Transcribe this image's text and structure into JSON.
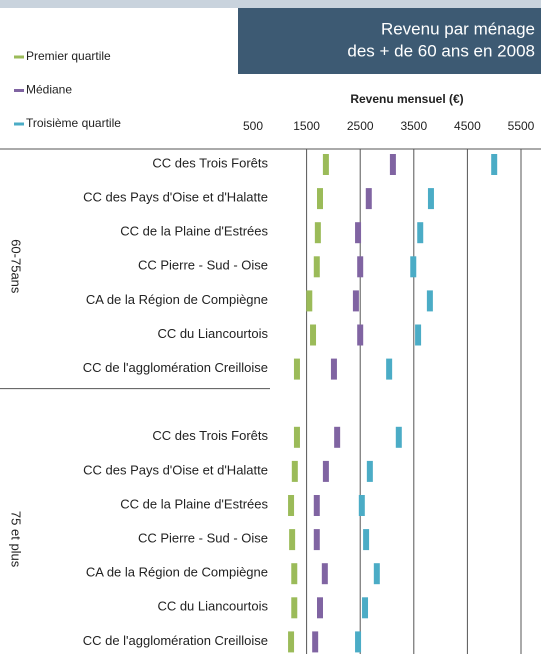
{
  "chart_data": {
    "type": "range-markers",
    "title_lines": [
      "Revenu par ménage",
      "des + de 60 ans en 2008"
    ],
    "x_label": "Revenu mensuel (€)",
    "groups": [
      "60-75ans",
      "75 et plus"
    ],
    "categories": [
      "CC des Trois Forêts",
      "CC des Pays d'Oise et d'Halatte",
      "CC de la Plaine d'Estrées",
      "CC Pierre - Sud - Oise",
      "CA de la Région de Compiègne",
      "CC du Liancourtois",
      "CC de l'agglomération Creilloise",
      null,
      "CC des Trois Forêts",
      "CC des Pays d'Oise et d'Halatte",
      "CC de la Plaine d'Estrées",
      "CC Pierre - Sud - Oise",
      "CA de la Région de Compiègne",
      "CC du Liancourtois",
      "CC de l'agglomération Creilloise"
    ],
    "series": [
      {
        "name": "Premier quartile",
        "color": "#9bbb59",
        "values": [
          1860,
          1750,
          1710,
          1690,
          1550,
          1620,
          1320,
          null,
          1320,
          1280,
          1210,
          1230,
          1270,
          1270,
          1210
        ]
      },
      {
        "name": "Médiane",
        "color": "#8064a2",
        "values": [
          3110,
          2660,
          2460,
          2500,
          2420,
          2500,
          2010,
          null,
          2070,
          1860,
          1690,
          1690,
          1840,
          1750,
          1660
        ]
      },
      {
        "name": "Troisième quartile",
        "color": "#4bacc6",
        "values": [
          5000,
          3820,
          3620,
          3490,
          3800,
          3580,
          3040,
          null,
          3220,
          2680,
          2530,
          2610,
          2810,
          2590,
          2460
        ]
      }
    ],
    "xlim": [
      500,
      5500
    ],
    "xticks": [
      500,
      1500,
      2500,
      3500,
      4500,
      5500
    ],
    "grid": true
  }
}
